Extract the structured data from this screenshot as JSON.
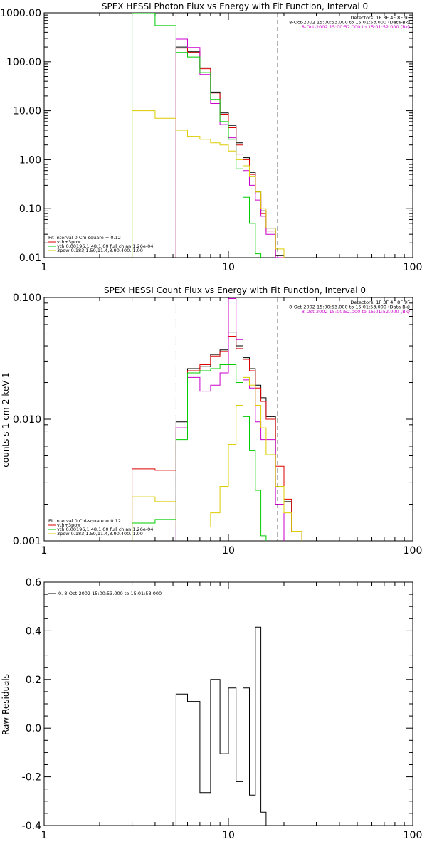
{
  "chart_data": [
    {
      "type": "line",
      "title": "SPEX HESSI Photon Flux vs Energy with Fit Function, Interval 0",
      "xscale": "log",
      "yscale": "log",
      "xlim": [
        1,
        100
      ],
      "ylim": [
        0.01,
        1000
      ],
      "x_tick_labels": [
        "1",
        "10",
        "100"
      ],
      "y_ticks": [
        0.01,
        0.1,
        1,
        10,
        100,
        1000
      ],
      "y_tick_labels": [
        "0.01",
        "0.10",
        "1.00",
        "10.00",
        "100.00",
        "1000.00"
      ],
      "legend_header": [
        "Detectors: 1F 3F 4F 8F 9F",
        "8-Oct-2002 15:00:53.000 to 15:01:53.000 (Data-Bk)",
        "8-Oct-2002 15:00:52.000 to 15:01:52.000 (Bk)"
      ],
      "legend_header_colors": [
        "#000000",
        "#000000",
        "#cc00cc"
      ],
      "fit_labels": [
        "Fit Interval 0   Chi-square = 0.12",
        "vth+3pow",
        "vth 0.00196,1.48,1.00  full chian 1.26e-04",
        "3pow 0.183,1.50,11.4,8.90,400.,1.00"
      ],
      "fit_label_colors": [
        "#000000",
        "#dd0000",
        "#00cc00",
        "#ddcc00"
      ],
      "vlines": [
        {
          "x": 5.2,
          "style": "dotted",
          "color": "#cc00cc"
        },
        {
          "x": 18.5,
          "style": "dashed",
          "color": "#000000"
        }
      ],
      "edges": [
        3,
        4,
        5.2,
        6,
        7,
        8,
        9,
        10,
        11,
        12,
        13,
        14,
        15,
        16,
        18,
        20,
        22,
        25
      ],
      "series": [
        {
          "color": "#000000",
          "values": [
            null,
            null,
            200,
            160,
            75,
            24,
            9,
            5,
            2.2,
            1.1,
            0.55,
            0.22,
            0.09,
            0.04,
            0.011,
            null,
            null
          ]
        },
        {
          "color": "#dd0000",
          "values": [
            null,
            null,
            190,
            155,
            72,
            23,
            8.5,
            4.5,
            2.0,
            1.0,
            0.5,
            0.2,
            0.08,
            0.035,
            0.01,
            null,
            null
          ]
        },
        {
          "color": "#cc00cc",
          "values": [
            null,
            null,
            290,
            195,
            55,
            14,
            5.2,
            2.8,
            1.3,
            0.6,
            0.3,
            0.15,
            0.07,
            0.03,
            0.01,
            null,
            null
          ]
        },
        {
          "color": "#00cc00",
          "values": [
            1200,
            550,
            155,
            125,
            60,
            17,
            6,
            2.6,
            0.65,
            0.17,
            0.05,
            0.012,
            null,
            null,
            null,
            null,
            null
          ]
        },
        {
          "color": "#ddcc00",
          "values": [
            10,
            7,
            4,
            3,
            2.6,
            2.2,
            2.0,
            1.5,
            1.0,
            0.75,
            0.45,
            0.22,
            0.1,
            0.04,
            0.015,
            null,
            null
          ]
        }
      ]
    },
    {
      "type": "line",
      "title": "SPEX HESSI Count Flux vs Energy with Fit Function, Interval 0",
      "ylabel": "counts s-1 cm-2 keV-1",
      "xscale": "log",
      "yscale": "log",
      "xlim": [
        1,
        100
      ],
      "ylim": [
        0.001,
        0.1
      ],
      "x_tick_labels": [
        "1",
        "10",
        "100"
      ],
      "y_ticks": [
        0.001,
        0.01,
        0.1
      ],
      "y_tick_labels": [
        "0.001",
        "0.010",
        "0.100"
      ],
      "legend_header": [
        "Detectors: 1F 3F 4F 8F 9F",
        "8-Oct-2002 15:00:53.000 to 15:01:53.000 (Data-Bk)",
        "8-Oct-2002 15:00:52.000 to 15:01:52.000 (Bk)"
      ],
      "legend_header_colors": [
        "#000000",
        "#000000",
        "#cc00cc"
      ],
      "fit_labels": [
        "Fit Interval 0   Chi-square = 0.12",
        "vth+3pow",
        "vth 0.00196,1.48,1.00  full chian 1.26e-04",
        "3pow 0.183,1.50,11.4,8.90,400.,1.00"
      ],
      "fit_label_colors": [
        "#000000",
        "#dd0000",
        "#00cc00",
        "#ddcc00"
      ],
      "vlines": [
        {
          "x": 5.2,
          "style": "dotted",
          "color": "#000000"
        },
        {
          "x": 18.5,
          "style": "dashed",
          "color": "#000000"
        }
      ],
      "edges": [
        3,
        4,
        5.2,
        6,
        7,
        8,
        9,
        10,
        11,
        12,
        13,
        14,
        15,
        16,
        18,
        20,
        22,
        25
      ],
      "series": [
        {
          "color": "#000000",
          "values": [
            null,
            null,
            0.0095,
            0.026,
            0.027,
            0.034,
            0.037,
            0.052,
            0.04,
            0.032,
            0.026,
            0.019,
            0.015,
            0.0105,
            0.0028,
            0.0021,
            0.0012
          ]
        },
        {
          "color": "#dd0000",
          "values": [
            0.0039,
            0.0038,
            0.0088,
            0.025,
            0.028,
            0.033,
            0.036,
            0.048,
            0.038,
            0.031,
            0.025,
            0.018,
            0.014,
            0.01,
            0.0041,
            0.0022,
            0.0012
          ]
        },
        {
          "color": "#cc00cc",
          "values": [
            null,
            null,
            0.0085,
            0.022,
            0.017,
            0.019,
            0.024,
            0.098,
            0.045,
            0.021,
            0.018,
            0.0095,
            0.0068,
            0.0068,
            0.002,
            null,
            null
          ]
        },
        {
          "color": "#00cc00",
          "values": [
            0.0014,
            0.0015,
            0.0068,
            0.024,
            0.025,
            0.026,
            0.028,
            0.028,
            0.02,
            0.0105,
            0.0055,
            0.0026,
            0.0011,
            null,
            null,
            null,
            null
          ]
        },
        {
          "color": "#ddcc00",
          "values": [
            0.0023,
            0.0021,
            0.0013,
            0.0013,
            0.0013,
            0.0017,
            0.0028,
            0.0062,
            0.013,
            0.022,
            0.019,
            0.013,
            0.0085,
            0.0051,
            0.0028,
            0.0017,
            0.0012
          ]
        }
      ]
    },
    {
      "type": "line",
      "ylabel": "Raw Residuals",
      "xscale": "log",
      "yscale": "linear",
      "xlim": [
        1,
        100
      ],
      "ylim": [
        -0.4,
        0.6
      ],
      "x_tick_labels": [
        "1",
        "10",
        "100"
      ],
      "y_ticks": [
        -0.4,
        -0.2,
        0.0,
        0.2,
        0.4,
        0.6
      ],
      "y_tick_labels": [
        "-0.4",
        "-0.2",
        "0.0",
        "0.2",
        "0.4",
        "0.6"
      ],
      "legend": "0.  8-Oct-2002 15:00:53.000 to 15:01:53.000",
      "edges": [
        5.2,
        6,
        7,
        8,
        9,
        10,
        11,
        12,
        13,
        14,
        15,
        16,
        18
      ],
      "series": [
        {
          "color": "#000000",
          "values": [
            0.14,
            0.11,
            -0.265,
            0.2,
            -0.105,
            0.165,
            -0.22,
            0.165,
            -0.275,
            0.415,
            -0.345,
            null
          ]
        }
      ]
    }
  ]
}
